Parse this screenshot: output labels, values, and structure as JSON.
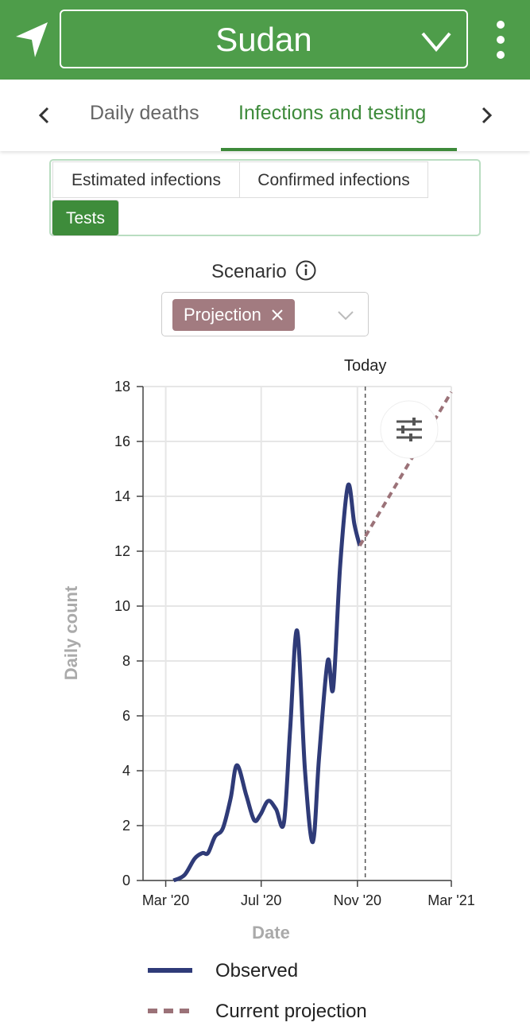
{
  "header": {
    "title": "Sudan"
  },
  "tabs": [
    "Daily deaths",
    "Infections and testing"
  ],
  "subtabs": [
    "Estimated infections",
    "Confirmed infections",
    "Tests"
  ],
  "scenario": {
    "label": "Scenario",
    "chip": "Projection"
  },
  "chart_data": {
    "type": "line",
    "xlabel": "Date",
    "ylabel": "Daily count",
    "xlim": [
      "2020-02-01",
      "2021-03-01"
    ],
    "xticks": [
      {
        "value": "2020-03-01",
        "label": "Mar '20"
      },
      {
        "value": "2020-07-01",
        "label": "Jul '20"
      },
      {
        "value": "2020-11-01",
        "label": "Nov '20"
      },
      {
        "value": "2021-03-01",
        "label": "Mar '21"
      }
    ],
    "ylim": [
      0,
      18
    ],
    "yticks": [
      0,
      2,
      4,
      6,
      8,
      10,
      12,
      14,
      16,
      18
    ],
    "grid": true,
    "annotation": {
      "label": "Today",
      "x": "2020-11-11"
    },
    "series": [
      {
        "name": "Observed",
        "color": "#2f3b78",
        "dash": false,
        "x": [
          "2020-03-11",
          "2020-03-25",
          "2020-04-07",
          "2020-04-17",
          "2020-04-24",
          "2020-05-03",
          "2020-05-13",
          "2020-05-23",
          "2020-05-31",
          "2020-06-12",
          "2020-06-22",
          "2020-06-30",
          "2020-07-10",
          "2020-07-20",
          "2020-07-30",
          "2020-08-07",
          "2020-08-16",
          "2020-08-26",
          "2020-09-05",
          "2020-09-13",
          "2020-09-24",
          "2020-10-01",
          "2020-10-10",
          "2020-10-20",
          "2020-10-28",
          "2020-11-04"
        ],
        "values": [
          0,
          0.2,
          0.8,
          1.0,
          1.0,
          1.6,
          1.9,
          3.0,
          4.2,
          3.1,
          2.2,
          2.4,
          2.9,
          2.6,
          2.1,
          5.5,
          9.1,
          4.0,
          1.4,
          4.5,
          8.0,
          7.0,
          11.5,
          14.4,
          13.0,
          12.2
        ]
      },
      {
        "name": "Current projection",
        "color": "#9b7278",
        "dash": true,
        "x": [
          "2020-11-04",
          "2021-03-01"
        ],
        "values": [
          12.2,
          17.8
        ]
      }
    ]
  }
}
